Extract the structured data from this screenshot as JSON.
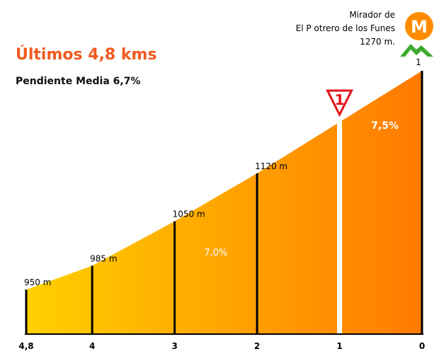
{
  "chart_data": {
    "type": "area",
    "title": "Últimos 4,8 kms",
    "subtitle": "Pendiente Media 6,7%",
    "x_reversed": true,
    "xlim": [
      4.8,
      0
    ],
    "ylim": [
      885,
      1300
    ],
    "x_ticks": [
      {
        "value": 4.8,
        "label": "4,8"
      },
      {
        "value": 4,
        "label": "4"
      },
      {
        "value": 3,
        "label": "3"
      },
      {
        "value": 2,
        "label": "2"
      },
      {
        "value": 1,
        "label": "1"
      },
      {
        "value": 0,
        "label": "0"
      }
    ],
    "points": [
      {
        "km": 4.8,
        "alt": 950,
        "label": "950 m"
      },
      {
        "km": 4,
        "alt": 985,
        "label": "985 m"
      },
      {
        "km": 3,
        "alt": 1050,
        "label": "1050 m"
      },
      {
        "km": 2,
        "alt": 1120,
        "label": "1120 m"
      },
      {
        "km": 1,
        "alt": 1195,
        "label": ""
      },
      {
        "km": 0,
        "alt": 1270,
        "label": ""
      }
    ],
    "gradient_labels": [
      {
        "km": 2.5,
        "alt": 1000,
        "text": "7,0%",
        "bold": false
      },
      {
        "km": 0.45,
        "alt": 1185,
        "text": "7,5%",
        "bold": true
      }
    ],
    "marker_1km": {
      "km": 1,
      "text": "1"
    },
    "summit": {
      "km": 0,
      "lines": [
        "Mirador de",
        "El P otrero de los Funes",
        "1270 m."
      ],
      "badge_letter": "M",
      "category": "1"
    },
    "colors": {
      "fill_start": "#FFD000",
      "fill_end": "#FF7A00",
      "title": "#F05A1E",
      "badge": "#FF8C00",
      "mountain": "#3DAA2E",
      "marker_red": "#E3121A"
    }
  }
}
